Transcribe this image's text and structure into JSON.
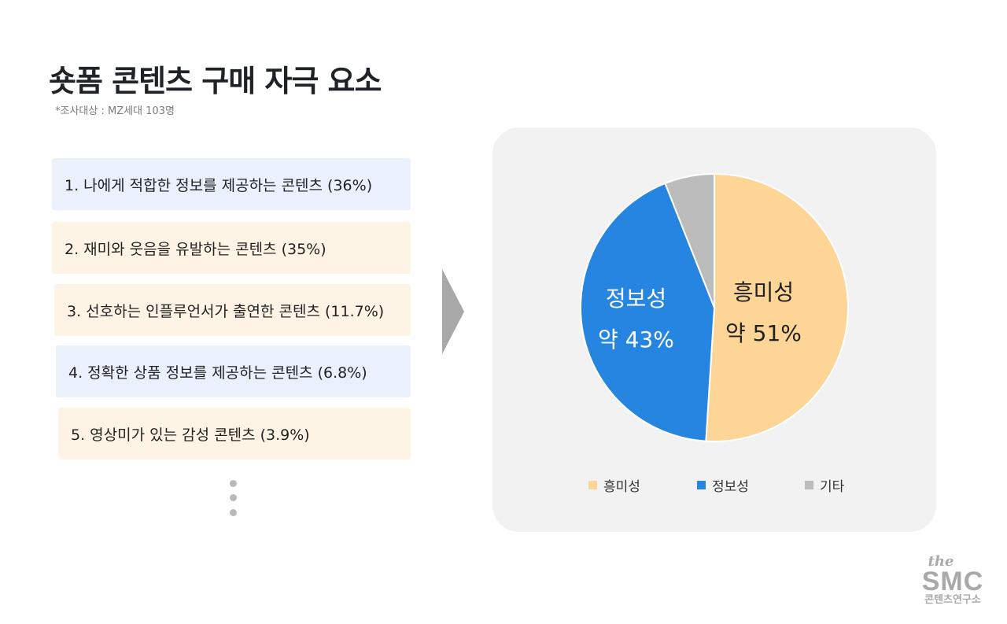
{
  "header": {
    "title": "숏폼 콘텐츠 구매 자극 요소",
    "subtitle": "*조사대상 : MZ세대 103명"
  },
  "items": [
    {
      "label": "1. 나에게 적합한 정보를 제공하는 콘텐츠 (36%)",
      "color": "#eaf1fd"
    },
    {
      "label": "2. 재미와 웃음을 유발하는 콘텐츠 (35%)",
      "color": "#fdf4e6"
    },
    {
      "label": "3. 선호하는 인플루언서가 출연한 콘텐츠 (11.7%)",
      "color": "#fdf4e6"
    },
    {
      "label": "4. 정확한 상품 정보를 제공하는 콘텐츠 (6.8%)",
      "color": "#eaf1fd"
    },
    {
      "label": "5. 영상미가 있는 감성 콘텐츠 (3.9%)",
      "color": "#fdf4e6"
    }
  ],
  "chart_data": {
    "type": "pie",
    "slices": [
      {
        "name": "흥미성",
        "value": 51,
        "color": "#fdd597",
        "label_line1": "흥미성",
        "label_line2": "약 51%"
      },
      {
        "name": "정보성",
        "value": 43,
        "color": "#2585e0",
        "label_line1": "정보성",
        "label_line2": "약 43%"
      },
      {
        "name": "기타",
        "value": 6,
        "color": "#bcbcbc"
      }
    ],
    "legend": {
      "placement": "bottom",
      "entries": [
        "흥미성",
        "정보성",
        "기타"
      ]
    }
  },
  "logo": {
    "the": "the",
    "smc": "SMC",
    "kor": "콘텐츠연구소"
  }
}
